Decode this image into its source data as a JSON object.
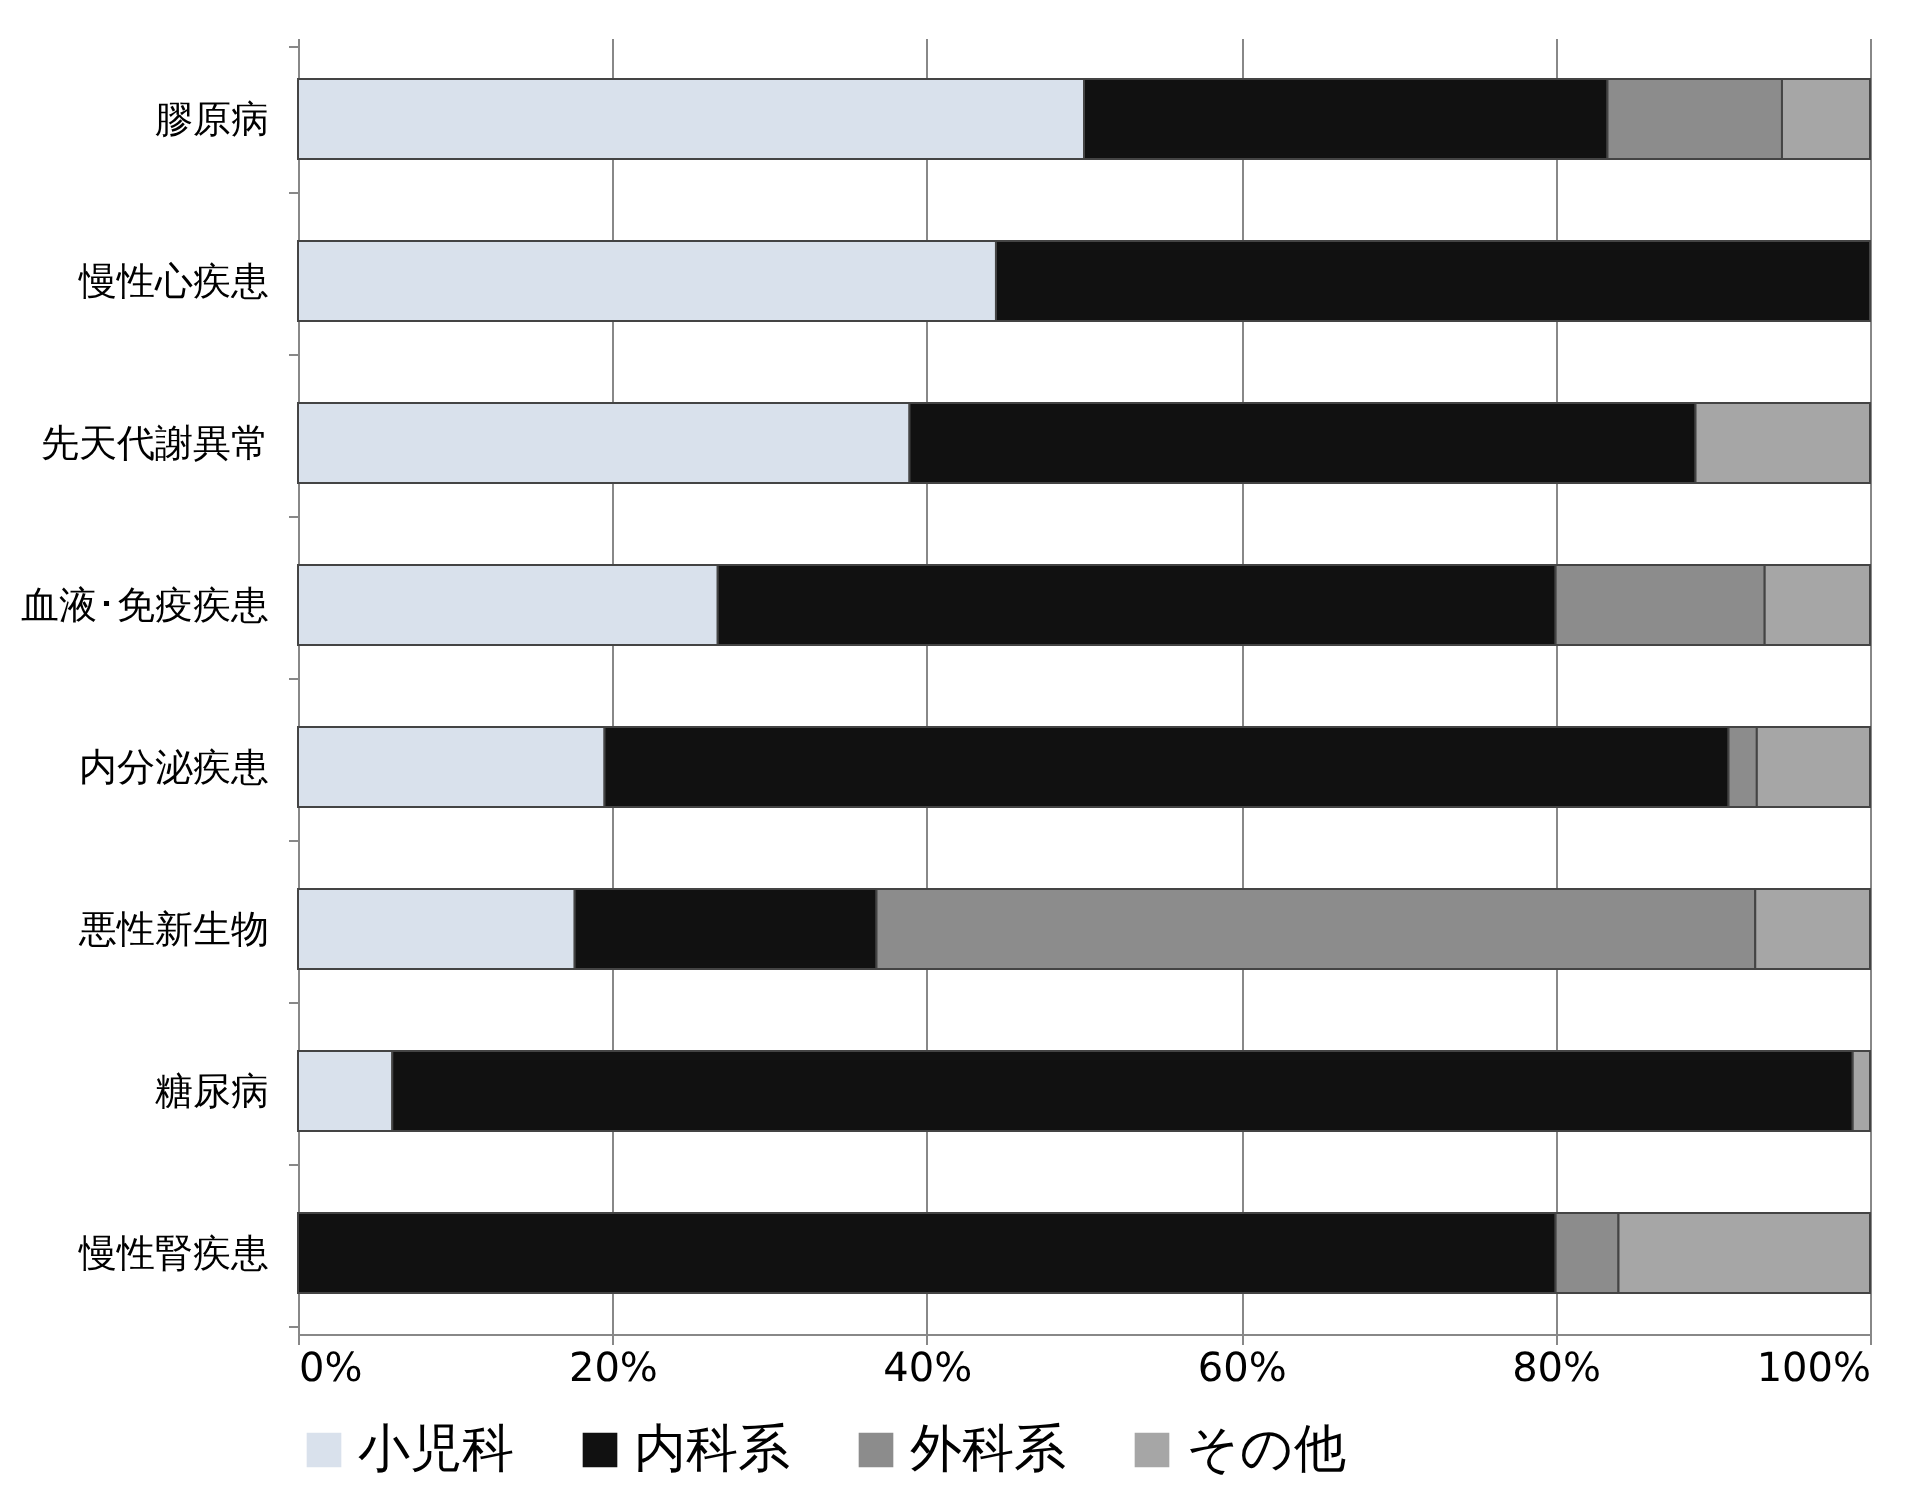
{
  "chart_data": {
    "type": "bar",
    "orientation": "horizontal",
    "stacked": true,
    "categories": [
      "膠原病",
      "慢性心疾患",
      "先天代謝異常",
      "血液･免疫疾患",
      "内分泌疾患",
      "悪性新生物",
      "糖尿病",
      "慢性腎疾患"
    ],
    "series": [
      {
        "name": "小児科",
        "color": "#d9e1ec",
        "values": [
          50,
          44.4,
          38.9,
          26.7,
          19.5,
          17.6,
          6,
          null
        ]
      },
      {
        "name": "内科系",
        "color": "#111111",
        "values": [
          33.3,
          55.6,
          50,
          53.3,
          71.5,
          19.2,
          92.9,
          80
        ]
      },
      {
        "name": "外科系",
        "color": "#8c8c8c",
        "values": [
          11.1,
          null,
          null,
          13.3,
          1.8,
          55.9,
          null,
          4
        ]
      },
      {
        "name": "その他",
        "color": "#a6a6a6",
        "values": [
          5.6,
          null,
          11.1,
          6.7,
          7.2,
          7.3,
          1.1,
          16
        ]
      }
    ],
    "xlim": [
      0,
      100
    ],
    "xticks": [
      {
        "value": 0,
        "label": "0%"
      },
      {
        "value": 20,
        "label": "20%"
      },
      {
        "value": 40,
        "label": "40%"
      },
      {
        "value": 60,
        "label": "60%"
      },
      {
        "value": 80,
        "label": "80%"
      },
      {
        "value": 100,
        "label": "100%"
      }
    ],
    "grid": "x",
    "legend": "bottom"
  }
}
